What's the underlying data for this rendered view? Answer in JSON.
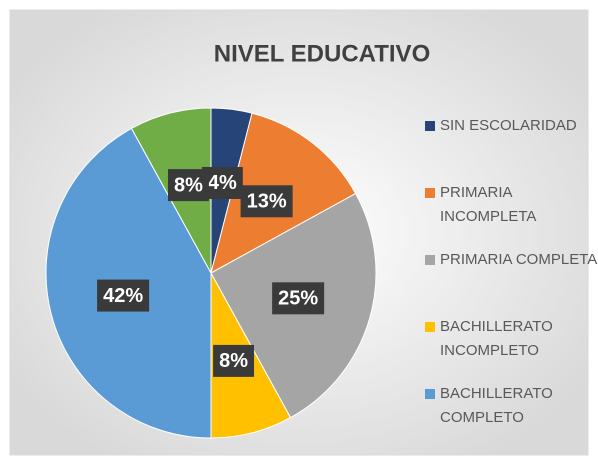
{
  "chart_data": {
    "type": "pie",
    "title": "NIVEL EDUCATIVO",
    "categories": [
      "SIN ESCOLARIDAD",
      "PRIMARIA INCOMPLETA",
      "PRIMARIA COMPLETA",
      "BACHILLERATO INCOMPLETO",
      "BACHILLERATO COMPLETO",
      null
    ],
    "values": [
      4,
      13,
      25,
      8,
      42,
      8
    ],
    "value_labels": [
      "4%",
      "13%",
      "25%",
      "8%",
      "42%",
      "8%"
    ],
    "colors": [
      "#264478",
      "#ed7d31",
      "#a5a5a5",
      "#ffc000",
      "#5b9bd5",
      "#70ad47"
    ]
  }
}
